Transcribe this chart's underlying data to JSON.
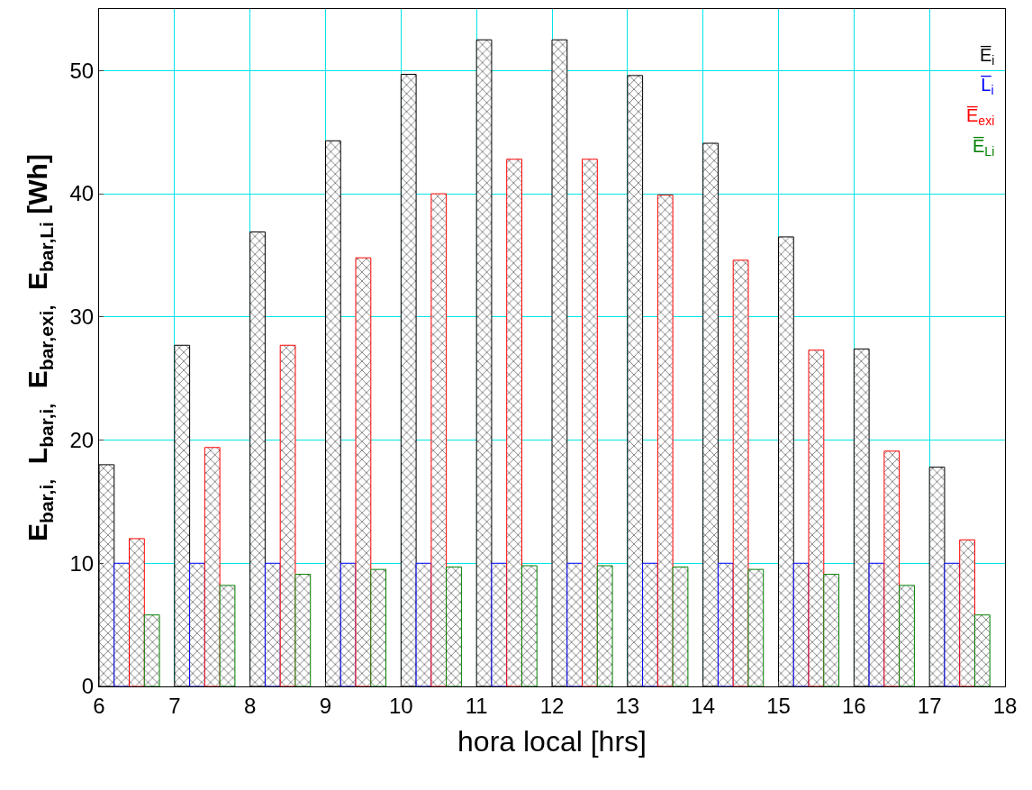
{
  "chart_data": {
    "type": "bar",
    "xlabel": "hora local [hrs]",
    "ylabel": "E$_{bar,i,}$  L$_{bar,i,}$  E$_{bar,exi,}$  E$_{bar,Li}$ [Wh]",
    "xlim": [
      6,
      18
    ],
    "xticks": [
      6,
      7,
      8,
      9,
      10,
      11,
      12,
      13,
      14,
      15,
      16,
      17,
      18
    ],
    "ylim": [
      0,
      55
    ],
    "yticks": [
      0,
      10,
      20,
      30,
      40,
      50
    ],
    "grid": true,
    "legend": "top right",
    "series": [
      {
        "name": "E̅$_{i}$",
        "color": "#000000",
        "x": [
          6.1,
          7.1,
          8.1,
          9.1,
          10.1,
          11.1,
          12.1,
          13.1,
          14.1,
          15.1,
          16.1,
          17.1
        ],
        "values": [
          18.0,
          27.7,
          36.9,
          44.3,
          49.7,
          52.5,
          52.5,
          49.6,
          44.1,
          36.5,
          27.4,
          17.8
        ]
      },
      {
        "name": "L̅$_{i}$",
        "color": "#0000ff",
        "x": [
          6.3,
          7.3,
          8.3,
          9.3,
          10.3,
          11.3,
          12.3,
          13.3,
          14.3,
          15.3,
          16.3,
          17.3
        ],
        "values": [
          10,
          10,
          10,
          10,
          10,
          10,
          10,
          10,
          10,
          10,
          10,
          10
        ]
      },
      {
        "name": "E̅$_{exi}$",
        "color": "#ff0000",
        "x": [
          6.5,
          7.5,
          8.5,
          9.5,
          10.5,
          11.5,
          12.5,
          13.5,
          14.5,
          15.5,
          16.5,
          17.5
        ],
        "values": [
          12.0,
          19.4,
          27.7,
          34.8,
          40.0,
          42.8,
          42.8,
          39.9,
          34.6,
          27.3,
          19.1,
          11.9
        ]
      },
      {
        "name": "E̅$_{Li}$",
        "color": "#008000",
        "x": [
          6.7,
          7.7,
          8.7,
          9.7,
          10.7,
          11.7,
          12.7,
          13.7,
          14.7,
          15.7,
          16.7,
          17.7
        ],
        "values": [
          5.8,
          8.2,
          9.1,
          9.5,
          9.7,
          9.8,
          9.8,
          9.7,
          9.5,
          9.1,
          8.2,
          5.8
        ]
      }
    ]
  }
}
